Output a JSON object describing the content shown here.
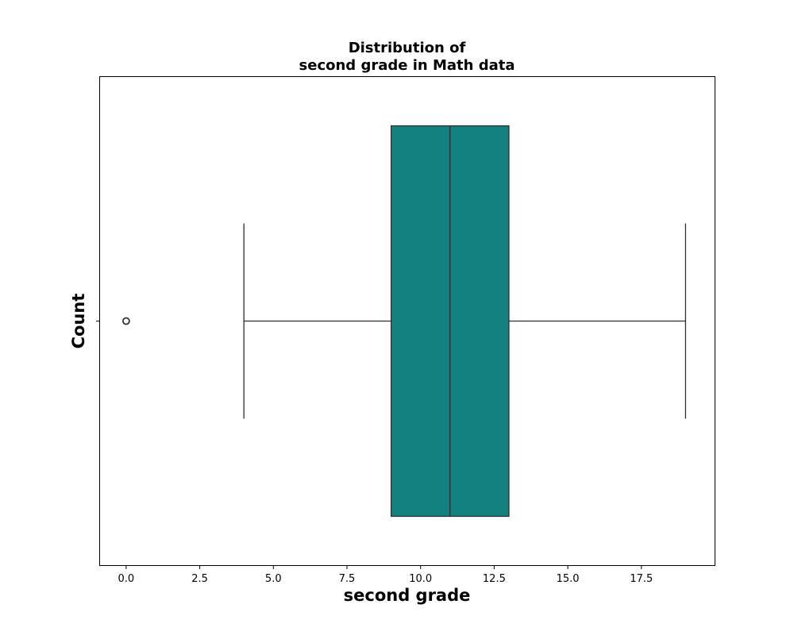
{
  "chart_data": {
    "type": "box",
    "title": [
      "Distribution of",
      "second grade in Math data"
    ],
    "xlabel": "second grade",
    "ylabel": "Count",
    "xlim": [
      -0.9,
      20.0
    ],
    "xticks": [
      0.0,
      2.5,
      5.0,
      7.5,
      10.0,
      12.5,
      15.0,
      17.5
    ],
    "xtick_labels": [
      "0.0",
      "2.5",
      "5.0",
      "7.5",
      "10.0",
      "12.5",
      "15.0",
      "17.5"
    ],
    "box": {
      "whisker_low": 4,
      "q1": 9,
      "median": 11,
      "q3": 13,
      "whisker_high": 19,
      "outliers": [
        0
      ]
    },
    "box_color": "#138080",
    "line_color": "#2f2f2f",
    "grid": false,
    "legend": "none"
  }
}
